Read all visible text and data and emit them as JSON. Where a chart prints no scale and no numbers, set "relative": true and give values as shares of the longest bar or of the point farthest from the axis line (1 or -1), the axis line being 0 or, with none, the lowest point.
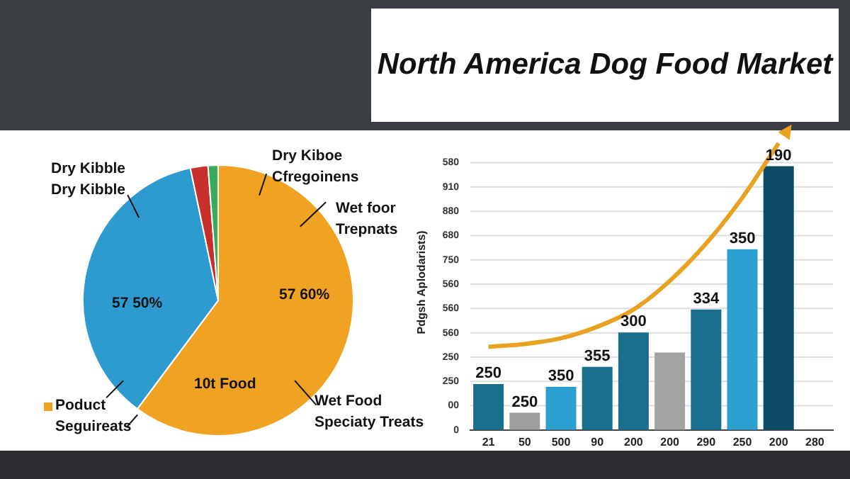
{
  "chart_data": [
    {
      "type": "pie",
      "categories": [
        null,
        null,
        null,
        null
      ],
      "values": [
        60.2,
        36.5,
        2.1,
        1.2
      ],
      "colors": [
        "#f0a323",
        "#2e9bd0",
        "#c8302e",
        "#3aaa5c"
      ],
      "annotations": [
        "Dry Kibble\nDry Kibble",
        "Dry Kiboe\nCfregoinens",
        "Wet foor\nTrepnats",
        "57 50%",
        "57 60%",
        "10t Food",
        "Poduct\nSeguireats",
        "Wet Food\nSpeciaty Treats"
      ]
    },
    {
      "type": "bar",
      "title": "North America Dog Food Market",
      "ylabel": "Pdgsh Aplodarists)",
      "relative": true,
      "categories": [
        "21",
        "50",
        "500",
        "90",
        "200",
        "200",
        "290",
        "250",
        "200",
        "280"
      ],
      "grid": "y",
      "marker": "none",
      "annotations": [
        "0",
        "00",
        "250",
        "250",
        "560",
        "560",
        "560",
        "750",
        "680",
        "880",
        "910",
        "580",
        {
          "text": "250",
          "x": "21",
          "y": 0.16
        },
        {
          "text": "250",
          "x": "50",
          "y": 0.06
        },
        {
          "text": "350",
          "x": "500",
          "y": 0.15
        },
        {
          "text": "355",
          "x": "90",
          "y": 0.22
        },
        {
          "text": "300",
          "x": "200",
          "y": 0.34
        },
        {
          "text": "334",
          "x": "290",
          "y": 0.42
        },
        {
          "text": "350",
          "x": "250",
          "y": 0.63
        },
        {
          "text": "190",
          "y": 0.92
        }
      ],
      "series": [
        {
          "type": "bar",
          "colors": [
            "#1a6f8e",
            "#9e9e9e",
            "#2b9fcf",
            "#1a6f8e",
            "#1a6f8e",
            "#a3a3a3",
            "#1a6f8e",
            "#2b9fcf",
            "#0d4a66",
            "#1a6f8e"
          ],
          "values": [
            0.16,
            0.06,
            0.15,
            0.22,
            0.34,
            0.27,
            0.42,
            0.63,
            0.92,
            null
          ]
        },
        {
          "type": "line",
          "color": "#e9a21f",
          "values": [
            0.29,
            0.3,
            0.32,
            0.36,
            0.42,
            0.52,
            0.65,
            0.81,
            1,
            null
          ]
        }
      ]
    }
  ]
}
